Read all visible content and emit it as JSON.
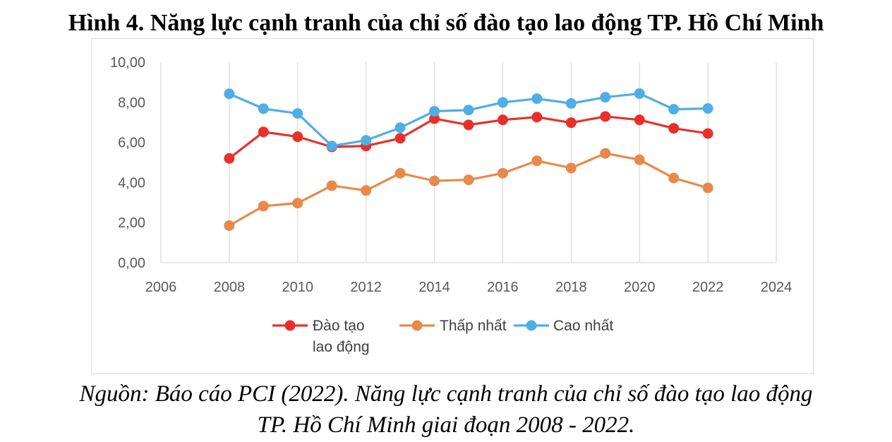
{
  "figure": {
    "title": "Hình 4. Năng lực cạnh tranh của chỉ số đào tạo lao động TP. Hồ Chí Minh",
    "caption_line1": "Nguồn: Báo cáo PCI (2022). Năng lực cạnh tranh của chỉ số đào tạo lao động",
    "caption_line2": "TP. Hồ Chí Minh giai đoạn 2008 - 2022."
  },
  "chart_data": {
    "type": "line",
    "title": "",
    "xlabel": "",
    "ylabel": "",
    "xlim": [
      2006,
      2024
    ],
    "ylim": [
      0,
      10
    ],
    "x_ticks": [
      "2006",
      "2008",
      "2010",
      "2012",
      "2014",
      "2016",
      "2018",
      "2020",
      "2022",
      "2024"
    ],
    "x_tick_values": [
      2006,
      2008,
      2010,
      2012,
      2014,
      2016,
      2018,
      2020,
      2022,
      2024
    ],
    "y_ticks": [
      "0,00",
      "2,00",
      "4,00",
      "6,00",
      "8,00",
      "10,00"
    ],
    "y_tick_values": [
      0,
      2,
      4,
      6,
      8,
      10
    ],
    "grid": "vertical",
    "legend_position": "bottom",
    "x": [
      2008,
      2009,
      2010,
      2011,
      2012,
      2013,
      2014,
      2015,
      2016,
      2017,
      2018,
      2019,
      2020,
      2021,
      2022
    ],
    "series": [
      {
        "name": "Đào tạo lao động",
        "legend_lines": [
          "Đào tạo",
          "lao động"
        ],
        "color": "#e8302a",
        "values": [
          5.2,
          6.52,
          6.28,
          5.77,
          5.82,
          6.2,
          7.18,
          6.87,
          7.12,
          7.26,
          6.98,
          7.29,
          7.12,
          6.7,
          6.44
        ]
      },
      {
        "name": "Thấp nhất",
        "legend_lines": [
          "Thấp nhất"
        ],
        "color": "#e8894a",
        "values": [
          1.85,
          2.82,
          2.97,
          3.84,
          3.6,
          4.46,
          4.08,
          4.13,
          4.46,
          5.08,
          4.72,
          5.45,
          5.13,
          4.22,
          3.73
        ]
      },
      {
        "name": "Cao nhất",
        "legend_lines": [
          "Cao nhất"
        ],
        "color": "#4eaee6",
        "values": [
          8.42,
          7.68,
          7.44,
          5.82,
          6.1,
          6.73,
          7.55,
          7.61,
          7.99,
          8.18,
          7.94,
          8.25,
          8.43,
          7.65,
          7.69
        ]
      }
    ]
  }
}
